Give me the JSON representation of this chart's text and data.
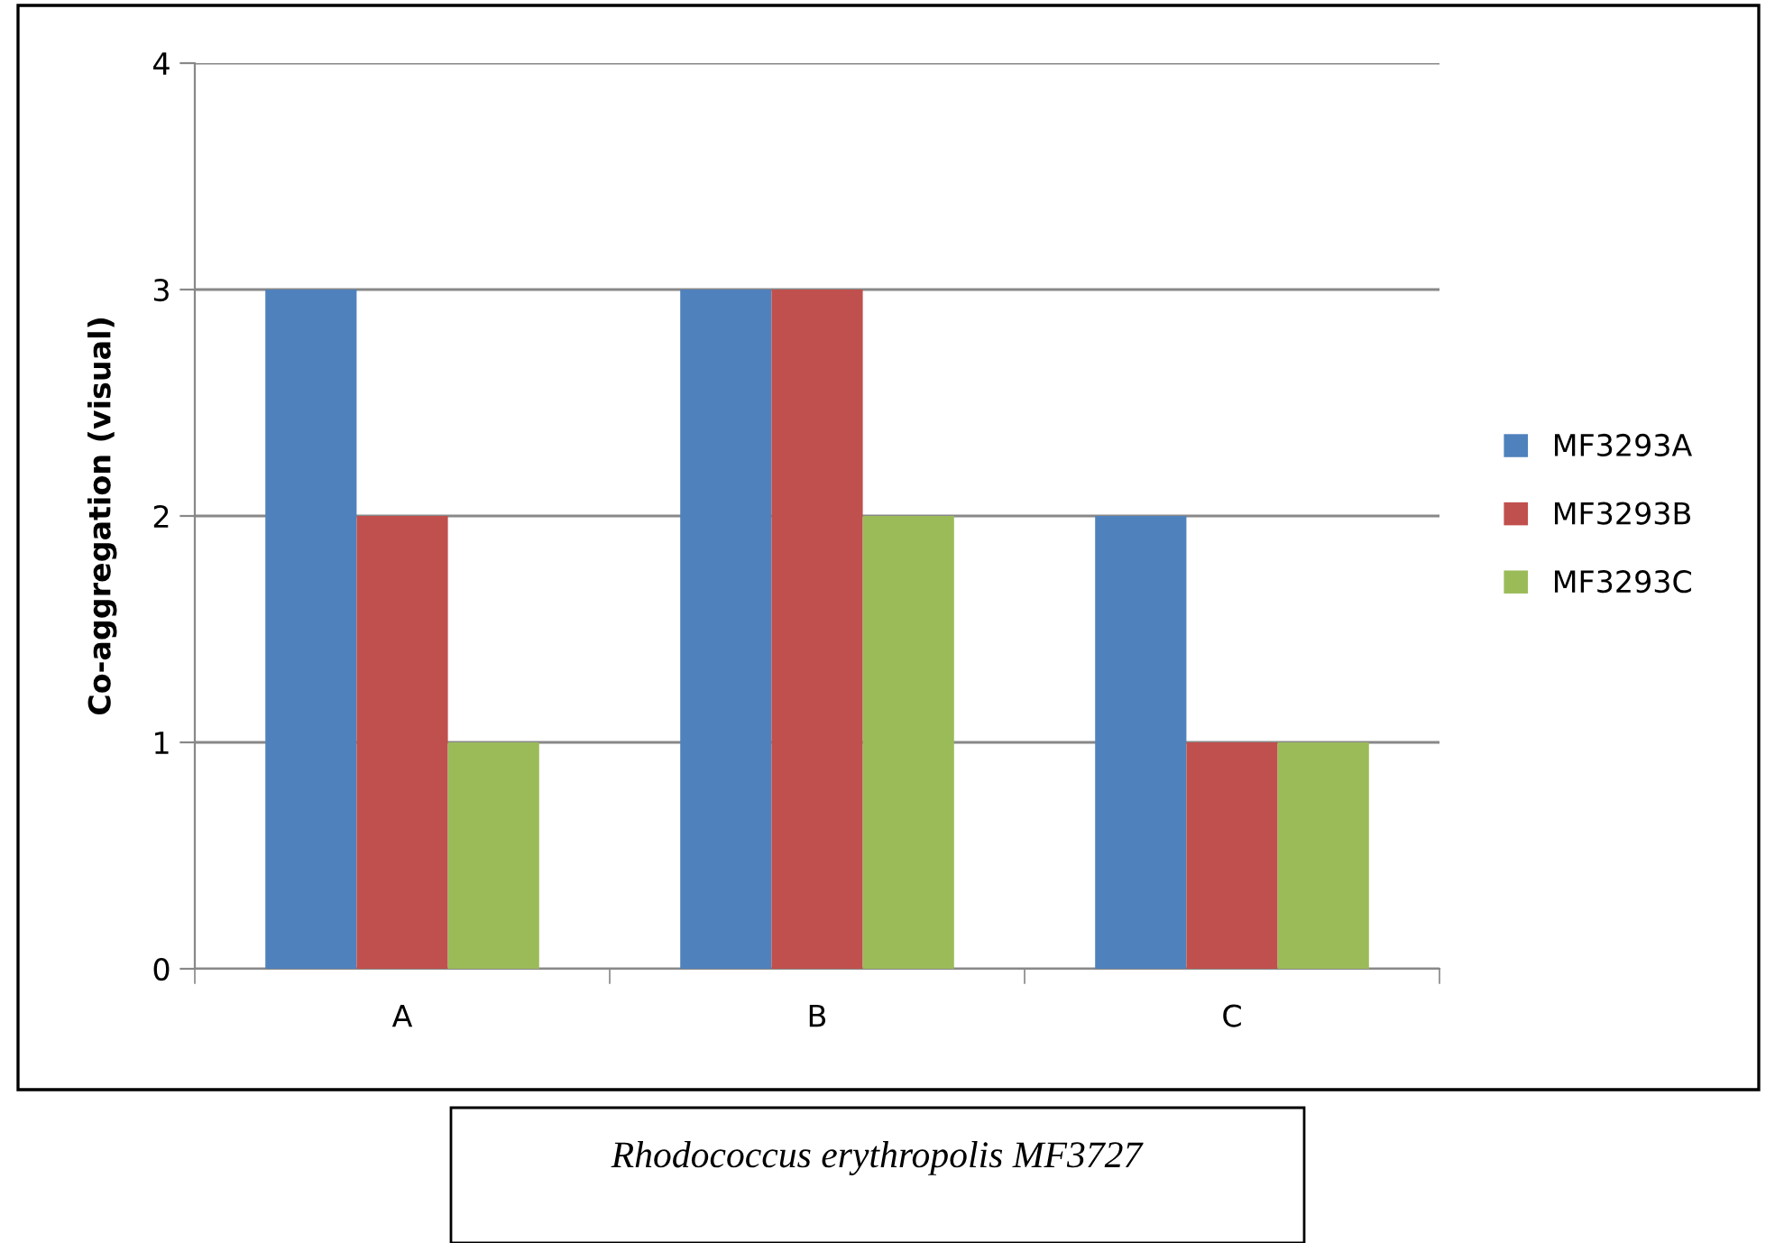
{
  "chart_data": {
    "type": "bar",
    "ylabel": "Co-aggregation (visual)",
    "categories": [
      "A",
      "B",
      "C"
    ],
    "series": [
      {
        "name": "MF3293A",
        "color": "#4f81bd",
        "values": [
          3,
          3,
          2
        ]
      },
      {
        "name": "MF3293B",
        "color": "#c0504d",
        "values": [
          2,
          3,
          1
        ]
      },
      {
        "name": "MF3293C",
        "color": "#9bbb59",
        "values": [
          1,
          2,
          1
        ]
      }
    ],
    "ylim": [
      0,
      4
    ],
    "yticks": [
      0,
      1,
      2,
      3,
      4
    ],
    "grid": "y",
    "legend": "right",
    "annotations": [
      "Rhodococcus erythropolis MF3727"
    ]
  }
}
